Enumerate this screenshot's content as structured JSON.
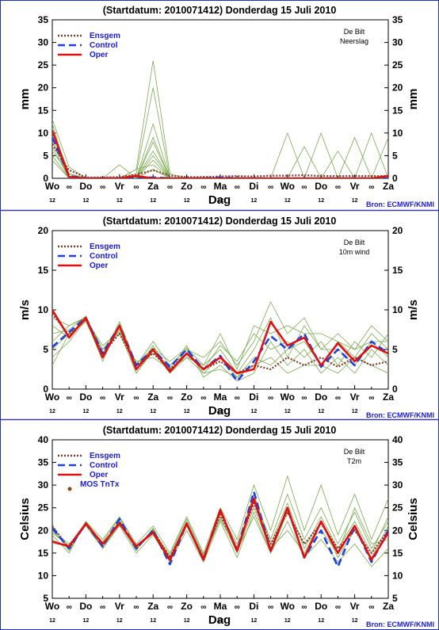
{
  "x_days": [
    "Wo",
    "Do",
    "Vr",
    "Za",
    "Zo",
    "Ma",
    "Di",
    "Wo",
    "Do",
    "Vr",
    "Za"
  ],
  "x_hours": [
    "12",
    "12",
    "12",
    "12",
    "12",
    "12",
    "12",
    "12",
    "12",
    "12"
  ],
  "xlabel": "Dag",
  "source": "Bron: ECMWF/KNMI",
  "colors": {
    "ensmean": "#8b3a2a",
    "control": "#1f3fe0",
    "oper": "#e01010",
    "members": "#7aab4f",
    "mos": "#8b4513",
    "frame": "#2233aa",
    "separator": "#3a3ab0"
  },
  "legend": {
    "ensmean": "Ensgem",
    "control": "Control",
    "oper": "Oper",
    "mos": "MOS TnTx"
  },
  "panels": [
    {
      "title": "(Startdatum: 2010071412)   Donderdag 15 Juli      2010",
      "station": "De Bilt",
      "variable": "Neerslag",
      "ylabel": "mm",
      "yticks": [
        "0",
        "5",
        "10",
        "15",
        "20",
        "25",
        "30",
        "35"
      ],
      "show_mos": false,
      "chart_data": {
        "type": "line",
        "x": [
          0,
          0.5,
          1,
          1.5,
          2,
          2.5,
          3,
          3.5,
          4,
          4.5,
          5,
          5.5,
          6,
          6.5,
          7,
          7.5,
          8,
          8.5,
          9,
          9.5,
          10
        ],
        "ylim": [
          0,
          35
        ],
        "series": [
          {
            "name": "Ensgem",
            "values": [
              7.5,
              1.8,
              0.2,
              0.2,
              0.3,
              0.8,
              1.8,
              0.6,
              0.3,
              0.3,
              0.4,
              0.5,
              0.4,
              0.6,
              0.6,
              0.7,
              0.5,
              0.5,
              0.5,
              0.5,
              0.5
            ]
          },
          {
            "name": "Control",
            "values": [
              9.0,
              0.5,
              0,
              0,
              0,
              0,
              0.2,
              0,
              0,
              0,
              0.2,
              0,
              0,
              0,
              0,
              0,
              0,
              0,
              0,
              0,
              0
            ]
          },
          {
            "name": "Oper",
            "values": [
              10.5,
              0.3,
              0,
              0,
              0,
              0.5,
              0,
              0,
              0,
              0,
              0,
              0,
              0,
              0,
              0,
              0,
              0,
              0,
              0,
              0,
              0.5
            ]
          }
        ],
        "ensemble_members": [
          [
            13.0,
            2.5,
            0,
            0,
            0,
            2,
            26,
            1,
            0,
            0,
            0,
            0,
            0,
            0,
            0,
            0,
            0,
            0,
            0,
            0,
            0
          ],
          [
            9.0,
            0,
            0,
            0,
            0,
            1,
            20,
            0,
            0,
            0,
            0,
            0,
            0,
            0,
            0,
            0,
            0,
            0,
            0,
            0,
            0
          ],
          [
            6.0,
            1,
            0,
            0,
            0,
            0,
            12,
            0,
            0,
            0,
            0,
            0,
            0,
            0,
            0,
            0,
            0,
            0,
            0,
            10,
            0
          ],
          [
            8.0,
            0,
            0,
            0,
            3,
            0,
            8,
            0,
            0,
            0,
            0,
            0,
            0,
            0,
            0,
            0,
            0,
            0,
            0,
            0,
            0
          ],
          [
            5.0,
            0,
            0,
            0,
            0,
            0,
            5,
            0,
            0,
            0,
            0,
            0,
            0,
            0,
            10,
            0,
            0,
            0,
            0,
            0,
            0
          ],
          [
            11.0,
            1,
            0,
            0,
            0,
            0,
            4,
            0,
            0,
            0,
            0,
            0,
            0,
            0,
            0,
            0,
            0,
            6,
            0,
            0,
            0
          ],
          [
            7.0,
            0,
            0,
            0,
            0,
            2,
            3,
            0,
            0,
            0,
            0,
            0,
            0,
            0,
            0,
            0,
            0,
            0,
            9,
            0,
            0
          ],
          [
            4.0,
            0,
            0,
            0,
            0,
            0,
            6,
            0,
            0,
            0,
            0,
            0,
            0,
            0,
            0,
            0,
            10,
            0,
            0,
            0,
            0
          ],
          [
            10.0,
            1,
            0,
            0,
            0,
            0,
            2,
            0,
            0,
            0,
            0,
            0,
            0,
            0,
            0,
            7,
            0,
            0,
            0,
            0,
            0
          ],
          [
            12.0,
            0,
            0,
            0,
            0,
            0,
            9,
            0,
            0,
            0,
            0,
            0,
            0,
            0,
            0,
            0,
            0,
            0,
            0,
            0,
            9
          ]
        ]
      }
    },
    {
      "title": "(Startdatum: 2010071412)   Donderdag 15 Juli      2010",
      "station": "De Bilt",
      "variable": "10m wind",
      "ylabel": "m/s",
      "yticks": [
        "0",
        "5",
        "10",
        "15",
        "20"
      ],
      "show_mos": false,
      "chart_data": {
        "type": "line",
        "x": [
          0,
          0.5,
          1,
          1.5,
          2,
          2.5,
          3,
          3.5,
          4,
          4.5,
          5,
          5.5,
          6,
          6.5,
          7,
          7.5,
          8,
          8.5,
          9,
          9.5,
          10
        ],
        "ylim": [
          0,
          20
        ],
        "series": [
          {
            "name": "Ensgem",
            "values": [
              9.5,
              6.8,
              8.8,
              4.5,
              7.0,
              3.0,
              4.5,
              2.5,
              4.5,
              2.5,
              3.5,
              2.0,
              3.0,
              2.5,
              4.0,
              3.0,
              4.0,
              2.8,
              4.0,
              3.0,
              3.5
            ]
          },
          {
            "name": "Control",
            "values": [
              5.3,
              7.2,
              9.0,
              4.5,
              8.0,
              3.0,
              5.0,
              2.8,
              5.0,
              2.5,
              4.2,
              1.0,
              3.5,
              6.7,
              5.0,
              7.0,
              2.8,
              5.0,
              3.0,
              6.0,
              4.5
            ]
          },
          {
            "name": "Oper",
            "values": [
              10.0,
              6.5,
              9.0,
              4.0,
              8.0,
              2.5,
              5.0,
              2.2,
              4.5,
              2.5,
              4.0,
              2.0,
              2.5,
              8.5,
              5.5,
              6.5,
              3.0,
              5.8,
              3.5,
              5.5,
              4.5
            ]
          }
        ],
        "ensemble_members": [
          [
            6,
            8,
            9,
            5,
            8,
            3,
            6,
            3,
            5,
            4,
            6,
            3,
            6,
            11,
            7,
            9,
            5,
            7,
            5,
            8,
            6
          ],
          [
            5,
            7,
            8.5,
            4,
            7.5,
            2.5,
            5.5,
            2,
            5,
            2,
            4,
            1.5,
            4,
            3,
            5,
            6,
            3,
            6,
            4,
            7,
            5
          ],
          [
            8,
            6.5,
            9,
            5,
            7,
            3.5,
            4,
            2.5,
            4,
            3,
            5,
            2,
            5,
            9,
            4,
            8,
            5,
            5,
            3,
            6,
            4
          ],
          [
            3,
            7,
            8.8,
            3.5,
            8.2,
            2,
            5,
            2.5,
            5.5,
            1.5,
            3,
            1,
            2,
            6,
            3,
            5,
            2,
            4,
            2,
            5,
            3
          ],
          [
            7,
            7.5,
            9.2,
            4.5,
            7.8,
            3,
            4.5,
            3,
            4.5,
            2.5,
            5.5,
            3.5,
            7,
            5,
            6,
            4,
            6,
            3,
            6,
            4,
            7
          ],
          [
            4,
            6,
            8.7,
            5.5,
            7.2,
            2,
            4.8,
            2,
            4,
            2,
            2.5,
            1.5,
            3,
            4,
            2,
            3,
            3,
            2,
            4,
            3,
            2
          ],
          [
            9,
            8,
            9.1,
            4.2,
            8.5,
            3.2,
            5.2,
            3.5,
            5.2,
            3,
            7,
            2.5,
            8,
            7,
            8,
            7,
            7,
            6,
            5,
            6,
            6
          ]
        ]
      }
    },
    {
      "title": "(Startdatum: 2010071412)   Donderdag 15 Juli      2010",
      "station": "De Bilt",
      "variable": "T2m",
      "ylabel": "Celsius",
      "yticks": [
        "5",
        "10",
        "15",
        "20",
        "25",
        "30",
        "35",
        "40"
      ],
      "show_mos": true,
      "chart_data": {
        "type": "line",
        "x": [
          0,
          0.5,
          1,
          1.5,
          2,
          2.5,
          3,
          3.5,
          4,
          4.5,
          5,
          5.5,
          6,
          6.5,
          7,
          7.5,
          8,
          8.5,
          9,
          9.5,
          10
        ],
        "ylim": [
          5,
          40
        ],
        "series": [
          {
            "name": "Ensgem",
            "values": [
              21,
              16,
              21.5,
              16.5,
              22,
              16,
              20,
              14,
              21.5,
              14,
              23.5,
              16,
              26,
              17,
              24,
              17,
              21.5,
              16,
              20,
              15,
              20
            ]
          },
          {
            "name": "Control",
            "values": [
              20.5,
              16,
              21.5,
              16.5,
              22.5,
              16,
              20,
              12.5,
              21.5,
              13.5,
              24.5,
              15.5,
              28.5,
              15.5,
              25,
              14,
              20,
              12,
              21,
              13,
              20
            ]
          },
          {
            "name": "Oper",
            "values": [
              17.5,
              16.5,
              21.5,
              17,
              21.5,
              16.5,
              19.5,
              13.5,
              21.5,
              13.5,
              24.5,
              15.5,
              27,
              15.5,
              25,
              14,
              22,
              15,
              21,
              13.5,
              19.5
            ]
          }
        ],
        "ensemble_members": [
          [
            19,
            15,
            22,
            18,
            23,
            17,
            21,
            15,
            23,
            15,
            25,
            18,
            30,
            20,
            32,
            20,
            30,
            19,
            28,
            18,
            27
          ],
          [
            20,
            17,
            21,
            16,
            21,
            15,
            19,
            13,
            20,
            13,
            22,
            14,
            24,
            15,
            22,
            14,
            18,
            13,
            17,
            12,
            16
          ],
          [
            18,
            16,
            22,
            17,
            22,
            16,
            20,
            14,
            22,
            14,
            24,
            16,
            27,
            18,
            28,
            18,
            25,
            17,
            24,
            16,
            22
          ],
          [
            21,
            15.5,
            21.5,
            16,
            21.5,
            15.5,
            20.5,
            13.5,
            21,
            13.5,
            23,
            15,
            25,
            16,
            20,
            15,
            22,
            14,
            20,
            14,
            21
          ],
          [
            19.5,
            16.5,
            21.2,
            17.5,
            22.8,
            16.5,
            19.8,
            14.5,
            22.5,
            14.5,
            24,
            17,
            28,
            17,
            26,
            16,
            23,
            16,
            22,
            15,
            23
          ],
          [
            20,
            16,
            21.8,
            16.8,
            22.2,
            16.2,
            20.2,
            13.8,
            21.8,
            13.8,
            22.5,
            15.5,
            23,
            15,
            24,
            17,
            20,
            15,
            25,
            17,
            18
          ]
        ]
      }
    }
  ]
}
